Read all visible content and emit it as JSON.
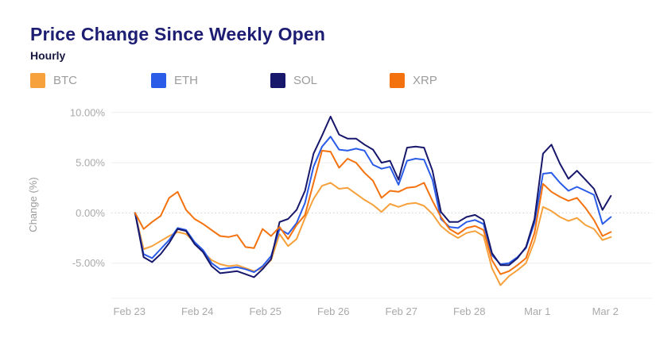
{
  "header": {
    "title": "Price Change Since Weekly Open",
    "subtitle": "Hourly"
  },
  "legend": {
    "items": [
      {
        "label": "BTC",
        "color": "#f6a13c"
      },
      {
        "label": "ETH",
        "color": "#2a5ce8"
      },
      {
        "label": "SOL",
        "color": "#17176b"
      },
      {
        "label": "XRP",
        "color": "#f4720e"
      }
    ]
  },
  "chart_data": {
    "type": "line",
    "title": "Price Change Since Weekly Open",
    "subtitle": "Hourly",
    "ylabel": "Change (%)",
    "xlabel": "",
    "grid": "horizontal",
    "legend_position": "top",
    "ylim": [
      -8.5,
      10.3
    ],
    "y_ticks": [
      {
        "value": 10,
        "label": "10.00%"
      },
      {
        "value": 5,
        "label": "5.00%"
      },
      {
        "value": 0,
        "label": "0.00%"
      },
      {
        "value": -5,
        "label": "-5.00%"
      }
    ],
    "x_tick_labels": [
      "Feb 23",
      "Feb 24",
      "Feb 25",
      "Feb 26",
      "Feb 27",
      "Feb 28",
      "Mar 1",
      "Mar 2"
    ],
    "x_tick_hours": [
      -2,
      22,
      46,
      70,
      94,
      118,
      142,
      166
    ],
    "x_start": "Feb 23 02:00",
    "x_interval_hours": 3,
    "series": [
      {
        "name": "BTC",
        "color": "#f6a13c",
        "values": [
          0.0,
          -3.6,
          -3.3,
          -2.8,
          -2.3,
          -1.9,
          -2.1,
          -2.9,
          -3.9,
          -4.7,
          -5.1,
          -5.3,
          -5.2,
          -5.5,
          -5.8,
          -5.5,
          -4.7,
          -2.1,
          -3.3,
          -2.6,
          -0.5,
          1.4,
          2.7,
          3.0,
          2.4,
          2.5,
          1.9,
          1.3,
          0.8,
          0.1,
          0.9,
          0.6,
          0.9,
          1.0,
          0.7,
          -0.1,
          -1.3,
          -2.0,
          -2.5,
          -2.0,
          -1.8,
          -2.3,
          -5.5,
          -7.2,
          -6.3,
          -5.7,
          -5.0,
          -2.8,
          0.6,
          0.2,
          -0.4,
          -0.8,
          -0.5,
          -1.2,
          -1.6,
          -2.7,
          -2.4
        ]
      },
      {
        "name": "ETH",
        "color": "#2a5ce8",
        "values": [
          0.0,
          -4.1,
          -4.5,
          -3.6,
          -2.7,
          -1.5,
          -1.7,
          -2.9,
          -3.7,
          -5.0,
          -5.6,
          -5.5,
          -5.4,
          -5.6,
          -5.9,
          -5.3,
          -4.3,
          -1.6,
          -2.1,
          -1.0,
          1.0,
          4.6,
          6.6,
          7.6,
          6.3,
          6.2,
          6.4,
          6.2,
          4.8,
          4.4,
          4.6,
          2.8,
          5.2,
          5.4,
          5.3,
          3.3,
          -0.6,
          -1.4,
          -1.5,
          -0.9,
          -0.7,
          -1.1,
          -4.2,
          -5.1,
          -5.0,
          -4.4,
          -3.5,
          -1.0,
          3.9,
          4.0,
          3.0,
          2.2,
          2.6,
          2.2,
          1.8,
          -1.1,
          -0.4
        ]
      },
      {
        "name": "SOL",
        "color": "#17176b",
        "values": [
          0.0,
          -4.4,
          -4.9,
          -4.1,
          -3.0,
          -1.6,
          -1.8,
          -3.1,
          -3.9,
          -5.3,
          -6.0,
          -5.9,
          -5.8,
          -6.1,
          -6.4,
          -5.6,
          -4.6,
          -0.9,
          -0.6,
          0.3,
          2.2,
          5.9,
          7.7,
          9.6,
          7.8,
          7.4,
          7.4,
          6.8,
          6.3,
          5.0,
          5.2,
          3.3,
          6.5,
          6.6,
          6.5,
          4.2,
          0.1,
          -0.9,
          -0.9,
          -0.4,
          -0.2,
          -0.7,
          -4.0,
          -5.2,
          -5.2,
          -4.5,
          -3.4,
          -0.6,
          5.9,
          6.8,
          4.9,
          3.4,
          4.2,
          3.3,
          2.4,
          0.3,
          1.7
        ]
      },
      {
        "name": "XRP",
        "color": "#f4720e",
        "values": [
          0.0,
          -1.6,
          -0.9,
          -0.3,
          1.5,
          2.1,
          0.3,
          -0.6,
          -1.1,
          -1.7,
          -2.3,
          -2.4,
          -2.2,
          -3.4,
          -3.5,
          -1.6,
          -2.3,
          -1.4,
          -2.6,
          -1.2,
          -0.2,
          3.0,
          6.2,
          6.1,
          4.5,
          5.4,
          5.0,
          4.0,
          3.2,
          1.5,
          2.2,
          2.1,
          2.5,
          2.6,
          3.0,
          1.2,
          -0.4,
          -1.6,
          -2.1,
          -1.5,
          -1.3,
          -1.7,
          -4.7,
          -6.1,
          -5.8,
          -5.2,
          -4.5,
          -2.0,
          2.9,
          2.1,
          1.6,
          1.2,
          1.5,
          0.5,
          -0.7,
          -2.3,
          -1.9
        ]
      }
    ]
  },
  "axis_style": {
    "tick_color": "#a9a9a9",
    "axis_title_color": "#9c9c9c",
    "grid_color": "#ededed",
    "zero_line_color": "#cfcfcf"
  }
}
